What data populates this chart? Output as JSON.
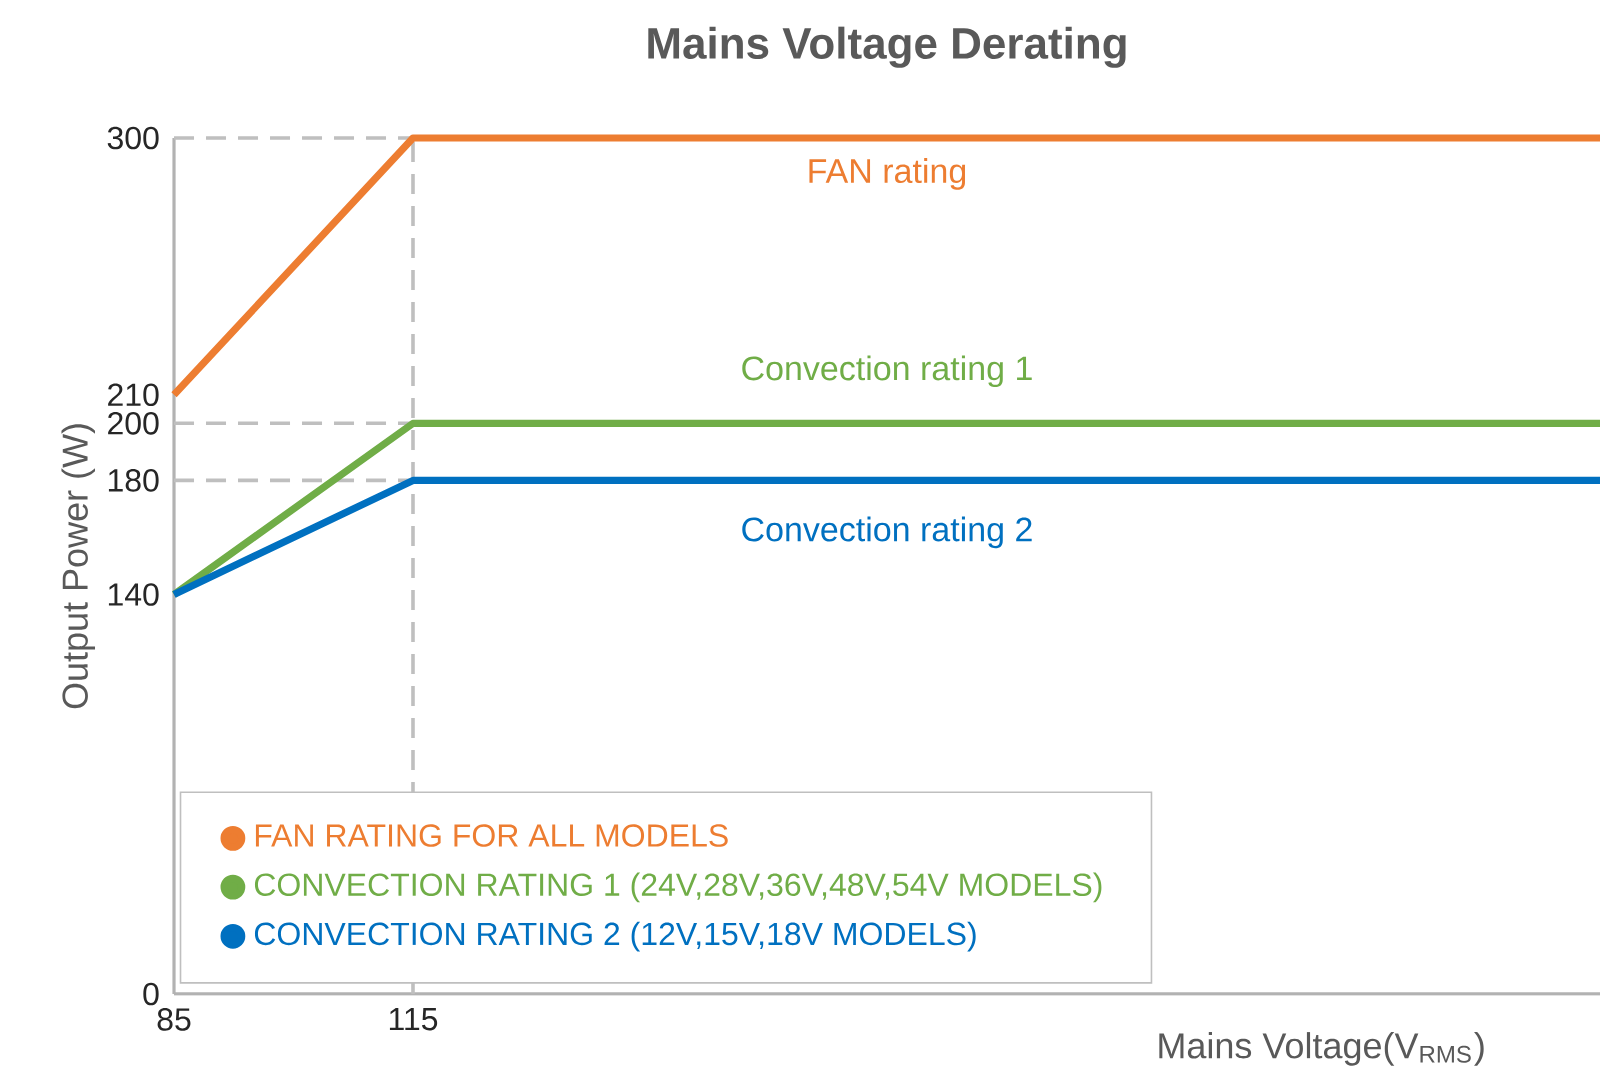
{
  "chart_data": {
    "type": "line",
    "title": "Mains Voltage Derating",
    "xlabel": "Mains Voltage(V$_{RMS}$)",
    "ylabel": "Output Power (W)",
    "x": [
      85,
      115,
      264
    ],
    "series": [
      {
        "name": "FAN RATING FOR ALL MODELS",
        "color": "#ed7d31",
        "values": [
          210,
          300,
          300
        ]
      },
      {
        "name": "CONVECTION RATING 1 (24V,28V,36V,48V,54V MODELS)",
        "color": "#70ad47",
        "values": [
          140,
          200,
          200
        ]
      },
      {
        "name": "CONVECTION RATING 2 (12V,15V,18V MODELS)",
        "color": "#0070c0",
        "values": [
          140,
          180,
          180
        ]
      }
    ],
    "xlim": [
      85,
      264
    ],
    "ylim": [
      0,
      300
    ],
    "xticks": [
      85,
      115
    ],
    "yticks": [
      0,
      140,
      180,
      200,
      210,
      300
    ],
    "ref_lines": [
      {
        "axis": "y",
        "value": 300,
        "color": "#bfbfbf",
        "line_style": "dashed"
      },
      {
        "axis": "y",
        "value": 200,
        "color": "#bfbfbf",
        "line_style": "dashed"
      },
      {
        "axis": "y",
        "value": 180,
        "color": "#bfbfbf",
        "line_style": "dashed"
      },
      {
        "axis": "x",
        "value": 115,
        "color": "#bfbfbf",
        "line_style": "dashed"
      }
    ],
    "annotations": [
      "FAN rating",
      "Convection rating 1",
      "Convection rating 2"
    ],
    "legend": "bottom left",
    "grid": false,
    "marker": "none",
    "line_style": "solid"
  }
}
